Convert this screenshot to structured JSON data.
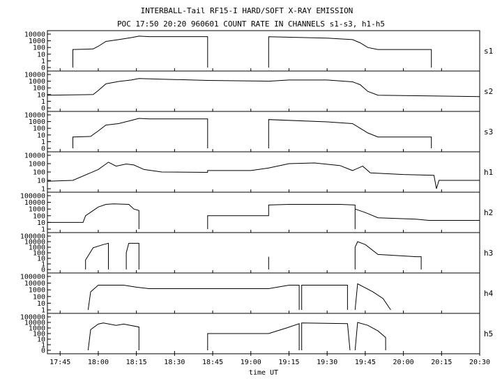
{
  "title_line1": "INTERBALL-Tail RF15-I HARD/SOFT X-RAY EMISSION",
  "title_line2": "POC 17:50 20:20 960601  COUNT RATE IN CHANNELS s1-s3, h1-h5",
  "chart_data": {
    "type": "line",
    "xlabel": "time UT",
    "x_unit": "minutes UT",
    "xlim": [
      "17:40",
      "20:30"
    ],
    "x_ticks": [
      "17:45",
      "18:00",
      "18:15",
      "18:30",
      "18:45",
      "19:00",
      "19:15",
      "19:30",
      "19:45",
      "20:00",
      "20:15",
      "20:30"
    ],
    "y_scale": "log",
    "panels": [
      {
        "name": "s1",
        "ylim": [
          0,
          10000
        ],
        "y_ticks": [
          "10000",
          "1000",
          "100",
          "10",
          "1",
          "0"
        ],
        "segments": [
          [
            [
              "17:50",
              0
            ],
            [
              "17:50",
              50
            ],
            [
              "17:58",
              60
            ],
            [
              "18:00",
              150
            ],
            [
              "18:03",
              800
            ],
            [
              "18:08",
              1500
            ],
            [
              "18:13",
              3000
            ],
            [
              "18:16",
              5000
            ],
            [
              "18:20",
              4200
            ],
            [
              "18:43",
              4200
            ],
            [
              "18:43",
              0
            ]
          ],
          [
            [
              "19:07",
              0
            ],
            [
              "19:07",
              4000
            ],
            [
              "19:30",
              2500
            ],
            [
              "19:40",
              1500
            ],
            [
              "19:43",
              500
            ],
            [
              "19:46",
              100
            ],
            [
              "19:50",
              50
            ],
            [
              "20:11",
              50
            ],
            [
              "20:11",
              0
            ]
          ]
        ]
      },
      {
        "name": "s2",
        "ylim": [
          0,
          10000
        ],
        "y_ticks": [
          "10000",
          "1000",
          "100",
          "10",
          "1",
          "0"
        ],
        "segments": [
          [
            [
              "17:40",
              8
            ],
            [
              "17:58",
              10
            ],
            [
              "18:00",
              40
            ],
            [
              "18:03",
              400
            ],
            [
              "18:08",
              900
            ],
            [
              "18:13",
              1500
            ],
            [
              "18:16",
              2500
            ],
            [
              "18:25",
              2000
            ],
            [
              "18:43",
              1300
            ],
            [
              "19:07",
              1000
            ],
            [
              "19:15",
              1500
            ],
            [
              "19:30",
              1500
            ],
            [
              "19:40",
              800
            ],
            [
              "19:43",
              300
            ],
            [
              "19:46",
              30
            ],
            [
              "19:50",
              8
            ],
            [
              "20:30",
              5
            ]
          ]
        ]
      },
      {
        "name": "s3",
        "ylim": [
          0,
          10000
        ],
        "y_ticks": [
          "10000",
          "1000",
          "100",
          "10",
          "1",
          "0"
        ],
        "segments": [
          [
            [
              "17:50",
              0
            ],
            [
              "17:50",
              5
            ],
            [
              "17:57",
              6
            ],
            [
              "18:00",
              40
            ],
            [
              "18:03",
              300
            ],
            [
              "18:08",
              500
            ],
            [
              "18:13",
              1500
            ],
            [
              "18:16",
              3000
            ],
            [
              "18:20",
              2500
            ],
            [
              "18:43",
              2500
            ],
            [
              "18:43",
              0
            ]
          ],
          [
            [
              "19:07",
              0
            ],
            [
              "19:07",
              2000
            ],
            [
              "19:30",
              900
            ],
            [
              "19:40",
              500
            ],
            [
              "19:43",
              100
            ],
            [
              "19:46",
              20
            ],
            [
              "19:50",
              5
            ],
            [
              "20:11",
              5
            ],
            [
              "20:11",
              0
            ]
          ]
        ]
      },
      {
        "name": "h1",
        "ylim": [
          1,
          10000
        ],
        "y_ticks": [
          "10000",
          "1000",
          "100",
          "10",
          "1"
        ],
        "segments": [
          [
            [
              "17:40",
              8
            ],
            [
              "17:50",
              10
            ],
            [
              "18:00",
              200
            ],
            [
              "18:04",
              1500
            ],
            [
              "18:07",
              500
            ],
            [
              "18:11",
              900
            ],
            [
              "18:14",
              700
            ],
            [
              "18:18",
              200
            ],
            [
              "18:25",
              100
            ],
            [
              "18:43",
              90
            ],
            [
              "18:43",
              150
            ],
            [
              "19:00",
              150
            ],
            [
              "19:07",
              300
            ],
            [
              "19:15",
              1000
            ],
            [
              "19:25",
              1200
            ],
            [
              "19:35",
              600
            ],
            [
              "19:40",
              150
            ],
            [
              "19:44",
              500
            ],
            [
              "19:47",
              80
            ],
            [
              "20:00",
              50
            ],
            [
              "20:12",
              40
            ],
            [
              "20:13",
              1
            ],
            [
              "20:14",
              10
            ],
            [
              "20:30",
              10
            ]
          ]
        ]
      },
      {
        "name": "h2",
        "ylim": [
          1,
          100000
        ],
        "y_ticks": [
          "100000",
          "10000",
          "1000",
          "100",
          "10",
          "1"
        ],
        "segments": [
          [
            [
              "17:40",
              10
            ],
            [
              "17:54",
              10
            ],
            [
              "17:55",
              100
            ],
            [
              "18:00",
              2000
            ],
            [
              "18:03",
              5000
            ],
            [
              "18:06",
              6000
            ],
            [
              "18:12",
              5000
            ],
            [
              "18:14",
              1000
            ],
            [
              "18:16",
              600
            ],
            [
              "18:16",
              0
            ]
          ],
          [
            [
              "18:43",
              0
            ],
            [
              "18:43",
              100
            ],
            [
              "19:07",
              100
            ],
            [
              "19:07",
              4000
            ],
            [
              "19:15",
              5000
            ],
            [
              "19:35",
              5000
            ],
            [
              "19:41",
              4000
            ],
            [
              "19:41",
              0
            ]
          ],
          [
            [
              "19:41",
              1000
            ],
            [
              "19:45",
              300
            ],
            [
              "19:50",
              50
            ],
            [
              "20:05",
              30
            ],
            [
              "20:10",
              20
            ],
            [
              "20:30",
              20
            ]
          ]
        ]
      },
      {
        "name": "h3",
        "ylim": [
          0,
          100000
        ],
        "y_ticks": [
          "100000",
          "10000",
          "1000",
          "100",
          "10",
          "1",
          "0"
        ],
        "segments": [
          [
            [
              "17:55",
              0
            ],
            [
              "17:55",
              5
            ],
            [
              "17:58",
              800
            ],
            [
              "18:02",
              3000
            ],
            [
              "18:04",
              5000
            ],
            [
              "18:04",
              0
            ]
          ],
          [
            [
              "18:11",
              0
            ],
            [
              "18:11",
              100
            ],
            [
              "18:12",
              5000
            ],
            [
              "18:16",
              5000
            ],
            [
              "18:16",
              0
            ]
          ],
          [
            [
              "19:07",
              0
            ],
            [
              "19:07",
              20
            ],
            [
              "19:07",
              0
            ]
          ],
          [
            [
              "19:41",
              0
            ],
            [
              "19:41",
              1000
            ],
            [
              "19:42",
              10000
            ],
            [
              "19:45",
              3000
            ],
            [
              "19:50",
              50
            ],
            [
              "20:05",
              20
            ],
            [
              "20:07",
              20
            ],
            [
              "20:07",
              0
            ]
          ]
        ]
      },
      {
        "name": "h4",
        "ylim": [
          1,
          100000
        ],
        "y_ticks": [
          "100000",
          "10000",
          "1000",
          "100",
          "10",
          "1"
        ],
        "segments": [
          [
            [
              "17:56",
              1
            ],
            [
              "17:57",
              500
            ],
            [
              "18:00",
              5000
            ],
            [
              "18:10",
              5000
            ],
            [
              "18:15",
              2500
            ],
            [
              "18:20",
              1500
            ],
            [
              "19:07",
              1500
            ],
            [
              "19:15",
              5000
            ],
            [
              "19:19",
              5000
            ],
            [
              "19:19",
              1
            ]
          ],
          [
            [
              "19:20",
              1
            ],
            [
              "19:20",
              5000
            ],
            [
              "19:38",
              5000
            ],
            [
              "19:38",
              1
            ]
          ],
          [
            [
              "19:41",
              1
            ],
            [
              "19:42",
              8000
            ],
            [
              "19:48",
              500
            ],
            [
              "19:52",
              50
            ],
            [
              "19:55",
              1
            ]
          ]
        ]
      },
      {
        "name": "h5",
        "ylim": [
          0,
          100000
        ],
        "y_ticks": [
          "100000",
          "10000",
          "1000",
          "100",
          "10",
          "1",
          "0"
        ],
        "segments": [
          [
            [
              "17:56",
              0
            ],
            [
              "17:57",
              500
            ],
            [
              "18:00",
              5000
            ],
            [
              "18:02",
              8000
            ],
            [
              "18:07",
              3000
            ],
            [
              "18:10",
              5000
            ],
            [
              "18:16",
              1500
            ],
            [
              "18:16",
              0
            ]
          ],
          [
            [
              "18:43",
              0
            ],
            [
              "18:43",
              100
            ],
            [
              "19:07",
              100
            ],
            [
              "19:14",
              1000
            ],
            [
              "19:19",
              6000
            ],
            [
              "19:19",
              0
            ]
          ],
          [
            [
              "19:20",
              0
            ],
            [
              "19:20",
              8000
            ],
            [
              "19:38",
              6000
            ],
            [
              "19:39",
              0
            ]
          ],
          [
            [
              "19:41",
              0
            ],
            [
              "19:42",
              10000
            ],
            [
              "19:46",
              3000
            ],
            [
              "19:50",
              300
            ],
            [
              "19:53",
              20
            ],
            [
              "19:53",
              0
            ]
          ]
        ]
      }
    ]
  }
}
